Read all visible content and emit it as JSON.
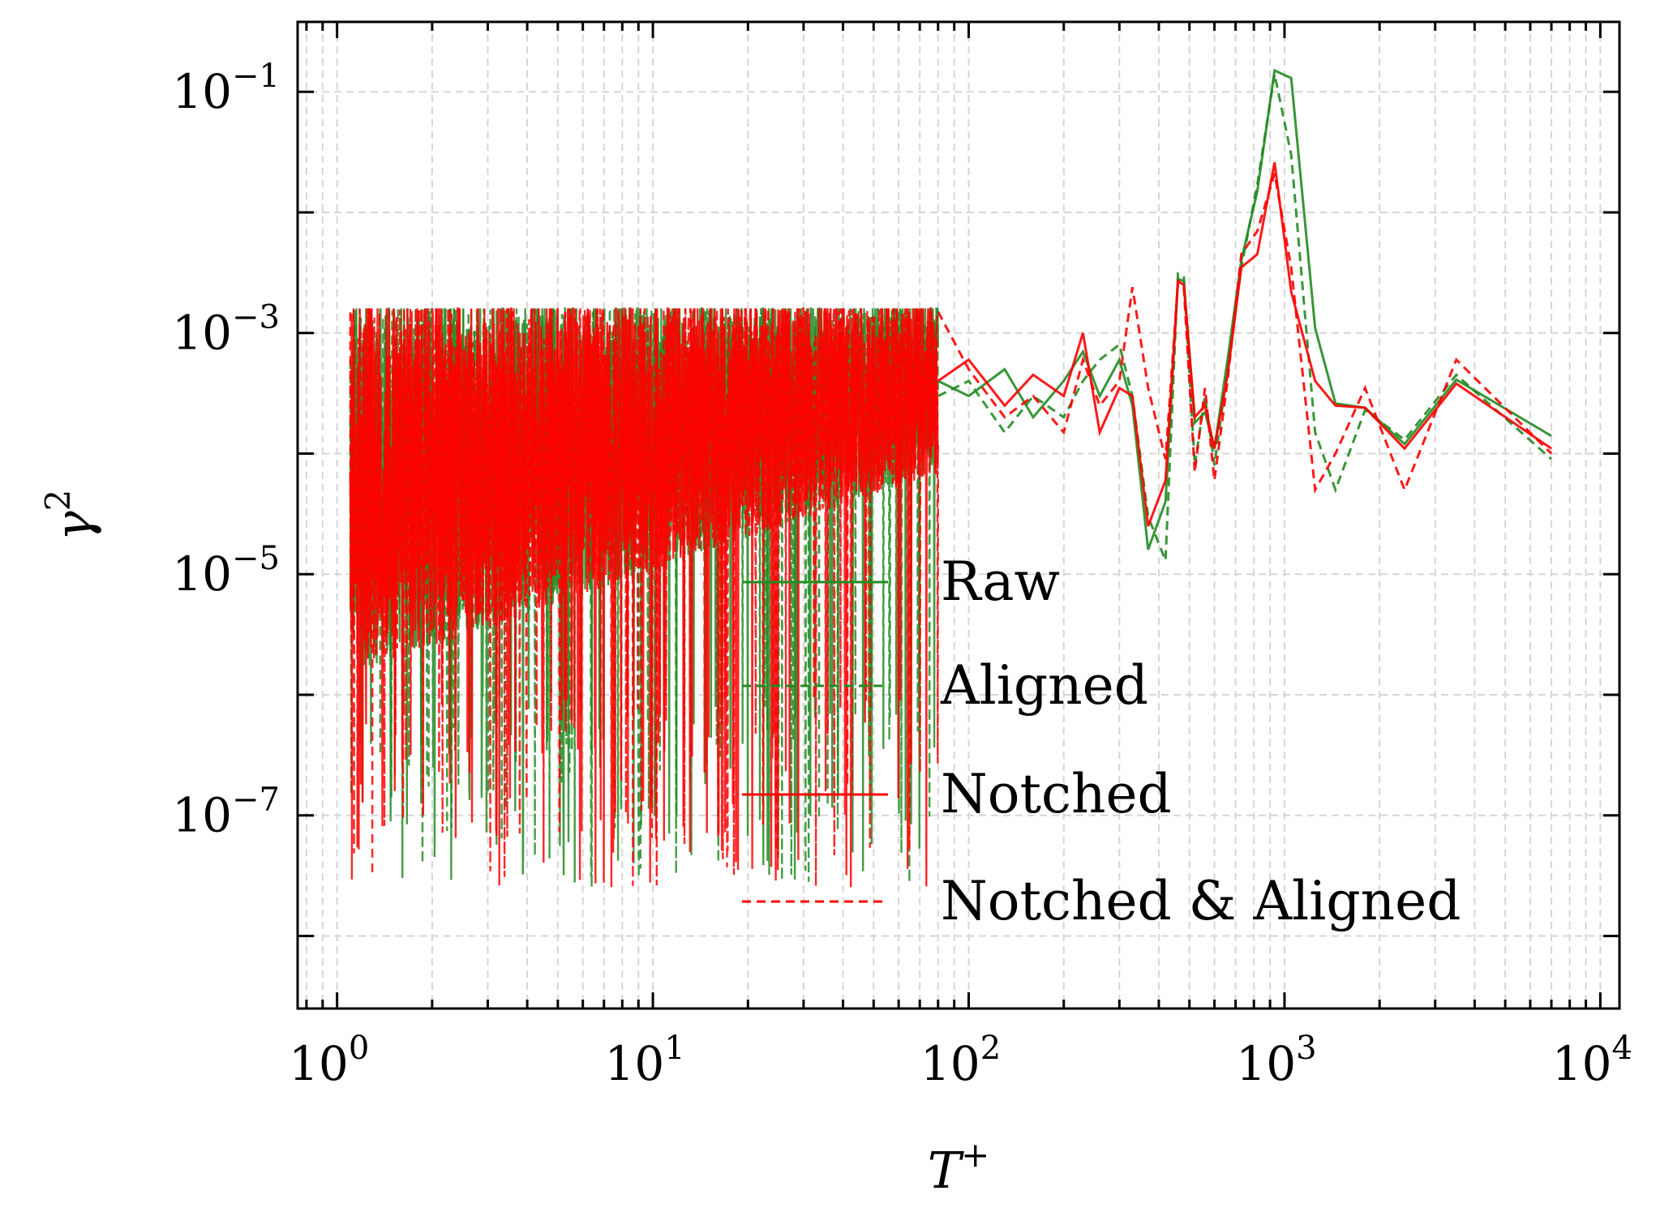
{
  "chart_data": {
    "type": "line",
    "title": "",
    "xlabel": "T",
    "xlabel_superscript": "+",
    "ylabel": "γ",
    "ylabel_superscript": "2",
    "x_scale": "log",
    "y_scale": "log",
    "xlim": [
      0.75,
      11500
    ],
    "ylim": [
      2.5e-09,
      0.38
    ],
    "x_ticks": [
      {
        "value": 1,
        "base": "10",
        "exp": "0"
      },
      {
        "value": 10,
        "base": "10",
        "exp": "1"
      },
      {
        "value": 100,
        "base": "10",
        "exp": "2"
      },
      {
        "value": 1000,
        "base": "10",
        "exp": "3"
      },
      {
        "value": 10000,
        "base": "10",
        "exp": "4"
      }
    ],
    "y_ticks": [
      {
        "value": 1e-07,
        "base": "10",
        "exp": "−7"
      },
      {
        "value": 1e-05,
        "base": "10",
        "exp": "−5"
      },
      {
        "value": 0.001,
        "base": "10",
        "exp": "−3"
      },
      {
        "value": 0.1,
        "base": "10",
        "exp": "−1"
      }
    ],
    "grid": true,
    "legend_position": "lower-right",
    "noise_region": {
      "x_range": [
        1.1,
        80
      ],
      "y_range": [
        1e-06,
        0.0016
      ]
    },
    "series": [
      {
        "name": "Raw",
        "color": "#228B22",
        "dash": "solid",
        "points": [
          [
            80,
            0.0004
          ],
          [
            100,
            0.0003
          ],
          [
            130,
            0.0005
          ],
          [
            160,
            0.0002
          ],
          [
            200,
            0.0004
          ],
          [
            230,
            0.0007
          ],
          [
            260,
            0.0003
          ],
          [
            300,
            0.0006
          ],
          [
            330,
            0.00025
          ],
          [
            370,
            1.6e-05
          ],
          [
            420,
            4e-05
          ],
          [
            460,
            0.0028
          ],
          [
            480,
            0.0027
          ],
          [
            520,
            0.00018
          ],
          [
            560,
            0.00022
          ],
          [
            600,
            0.00011
          ],
          [
            660,
            0.0006
          ],
          [
            730,
            0.004
          ],
          [
            820,
            0.015
          ],
          [
            930,
            0.15
          ],
          [
            1050,
            0.13
          ],
          [
            1250,
            0.0011
          ],
          [
            1450,
            0.00026
          ],
          [
            1800,
            0.00024
          ],
          [
            2400,
            0.00012
          ],
          [
            3500,
            0.00041
          ],
          [
            7000,
            0.00014
          ]
        ]
      },
      {
        "name": "Aligned",
        "color": "#228B22",
        "dash": "dashed",
        "points": [
          [
            80,
            0.0003
          ],
          [
            100,
            0.0004
          ],
          [
            130,
            0.00015
          ],
          [
            160,
            0.0003
          ],
          [
            200,
            0.0002
          ],
          [
            230,
            0.0004
          ],
          [
            260,
            0.0006
          ],
          [
            300,
            0.0008
          ],
          [
            330,
            0.0003
          ],
          [
            370,
            3e-05
          ],
          [
            420,
            1.3e-05
          ],
          [
            460,
            0.0031
          ],
          [
            480,
            0.0029
          ],
          [
            520,
            8e-05
          ],
          [
            560,
            0.0003
          ],
          [
            600,
            8e-05
          ],
          [
            660,
            0.0005
          ],
          [
            730,
            0.0035
          ],
          [
            820,
            0.017
          ],
          [
            930,
            0.14
          ],
          [
            1050,
            0.03
          ],
          [
            1250,
            0.00015
          ],
          [
            1450,
            5e-05
          ],
          [
            1800,
            0.00023
          ],
          [
            2400,
            0.00013
          ],
          [
            3500,
            0.00045
          ],
          [
            7000,
            9e-05
          ]
        ]
      },
      {
        "name": "Notched",
        "color": "#FF0000",
        "dash": "solid",
        "points": [
          [
            80,
            0.0004
          ],
          [
            100,
            0.0006
          ],
          [
            130,
            0.00025
          ],
          [
            160,
            0.00045
          ],
          [
            200,
            0.0003
          ],
          [
            230,
            0.001
          ],
          [
            260,
            0.00015
          ],
          [
            300,
            0.00035
          ],
          [
            330,
            0.0003
          ],
          [
            370,
            2.5e-05
          ],
          [
            420,
            6e-05
          ],
          [
            460,
            0.0027
          ],
          [
            480,
            0.0025
          ],
          [
            520,
            0.0002
          ],
          [
            560,
            0.00025
          ],
          [
            600,
            0.00011
          ],
          [
            660,
            0.00045
          ],
          [
            730,
            0.0035
          ],
          [
            820,
            0.0045
          ],
          [
            930,
            0.026
          ],
          [
            1050,
            0.0022
          ],
          [
            1250,
            0.0004
          ],
          [
            1450,
            0.00025
          ],
          [
            1800,
            0.00024
          ],
          [
            2400,
            0.00011
          ],
          [
            3500,
            0.00038
          ],
          [
            7000,
            0.00011
          ]
        ]
      },
      {
        "name": "Notched & Aligned",
        "color": "#FF0000",
        "dash": "dashed",
        "points": [
          [
            80,
            0.0015
          ],
          [
            100,
            0.0005
          ],
          [
            130,
            0.0002
          ],
          [
            160,
            0.0003
          ],
          [
            200,
            0.00015
          ],
          [
            230,
            0.0006
          ],
          [
            260,
            0.00025
          ],
          [
            300,
            0.0004
          ],
          [
            330,
            0.0024
          ],
          [
            370,
            0.00035
          ],
          [
            420,
            9e-05
          ],
          [
            460,
            0.0026
          ],
          [
            480,
            0.0024
          ],
          [
            520,
            7e-05
          ],
          [
            560,
            0.00035
          ],
          [
            600,
            6e-05
          ],
          [
            660,
            0.0004
          ],
          [
            730,
            0.0045
          ],
          [
            820,
            0.007
          ],
          [
            930,
            0.021
          ],
          [
            1050,
            0.0035
          ],
          [
            1250,
            5e-05
          ],
          [
            1450,
            0.0001
          ],
          [
            1800,
            0.00035
          ],
          [
            2400,
            5e-05
          ],
          [
            3500,
            0.0006
          ],
          [
            7000,
            0.0001
          ]
        ]
      }
    ]
  }
}
